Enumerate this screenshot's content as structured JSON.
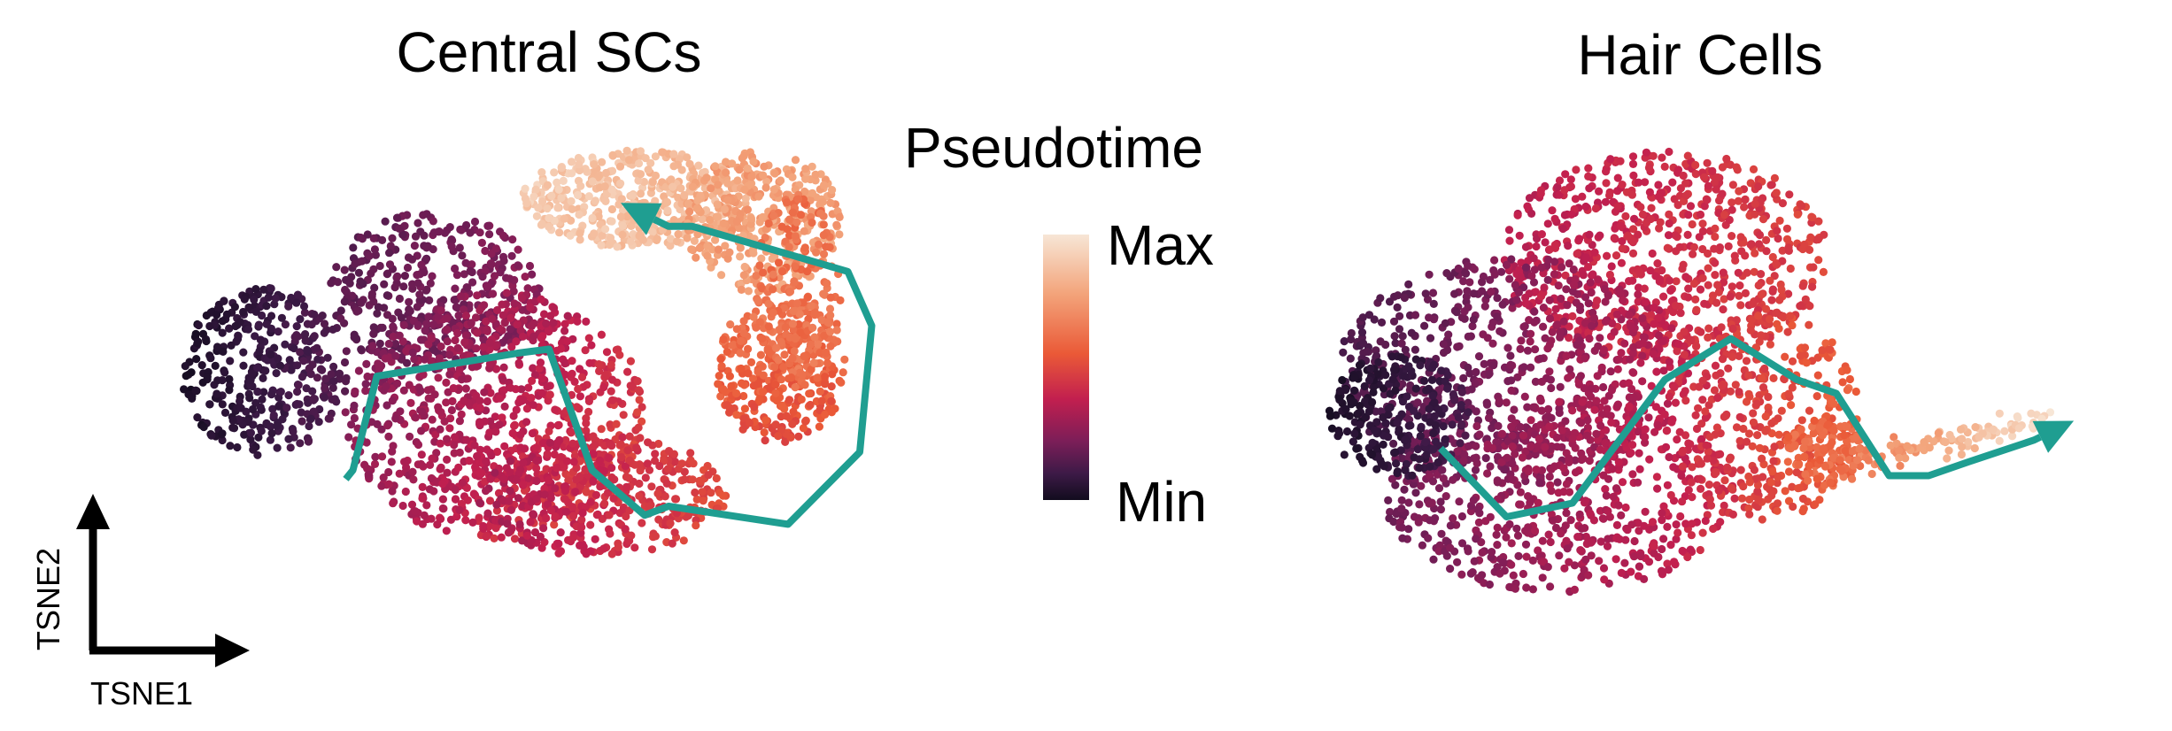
{
  "chart_data": [
    {
      "type": "scatter",
      "title": "Central SCs",
      "xlabel": "TSNE1",
      "ylabel": "TSNE2",
      "color_encoding": "Pseudotime",
      "trajectory": {
        "x": [
          -8.5,
          -8.2,
          -7.2,
          -1.2,
          0.0,
          1.8,
          4.0,
          5.0,
          10.0,
          13.0,
          13.5,
          12.5,
          6.0,
          5.0,
          3.0
        ],
        "y": [
          -3.5,
          -3.0,
          2.2,
          3.5,
          3.7,
          -3.0,
          -5.5,
          -5.0,
          -6.0,
          -2.0,
          5.0,
          8.0,
          10.5,
          10.5,
          11.8
        ],
        "arrow_at_end": true,
        "color": "#1f9e91"
      },
      "pseudotime_range": [
        "Min",
        "Max"
      ]
    },
    {
      "type": "scatter",
      "title": "Hair Cells",
      "xlabel": "TSNE1",
      "ylabel": "TSNE2",
      "color_encoding": "Pseudotime",
      "trajectory": {
        "x": [
          -9.5,
          -7.0,
          -4.5,
          -1.0,
          1.5,
          4.0,
          5.5,
          7.5,
          9.0,
          10.5,
          13.0,
          14.5
        ],
        "y": [
          -1.5,
          -4.0,
          -3.5,
          1.0,
          2.5,
          1.0,
          0.5,
          -2.5,
          -2.5,
          -2.0,
          -1.2,
          -0.5
        ],
        "arrow_at_end": true,
        "color": "#1f9e91"
      },
      "pseudotime_range": [
        "Min",
        "Max"
      ]
    }
  ],
  "panels": {
    "left_title": "Central SCs",
    "right_title": "Hair Cells"
  },
  "legend": {
    "title": "Pseudotime",
    "max_label": "Max",
    "min_label": "Min",
    "colormap": [
      "#120c1e",
      "#3d1a47",
      "#7b1e58",
      "#c21f4f",
      "#ea5937",
      "#f3a57c",
      "#f7e6d6"
    ]
  },
  "axes_indicator": {
    "x_label": "TSNE1",
    "y_label": "TSNE2"
  },
  "colors": {
    "trajectory": "#1f9e91"
  }
}
